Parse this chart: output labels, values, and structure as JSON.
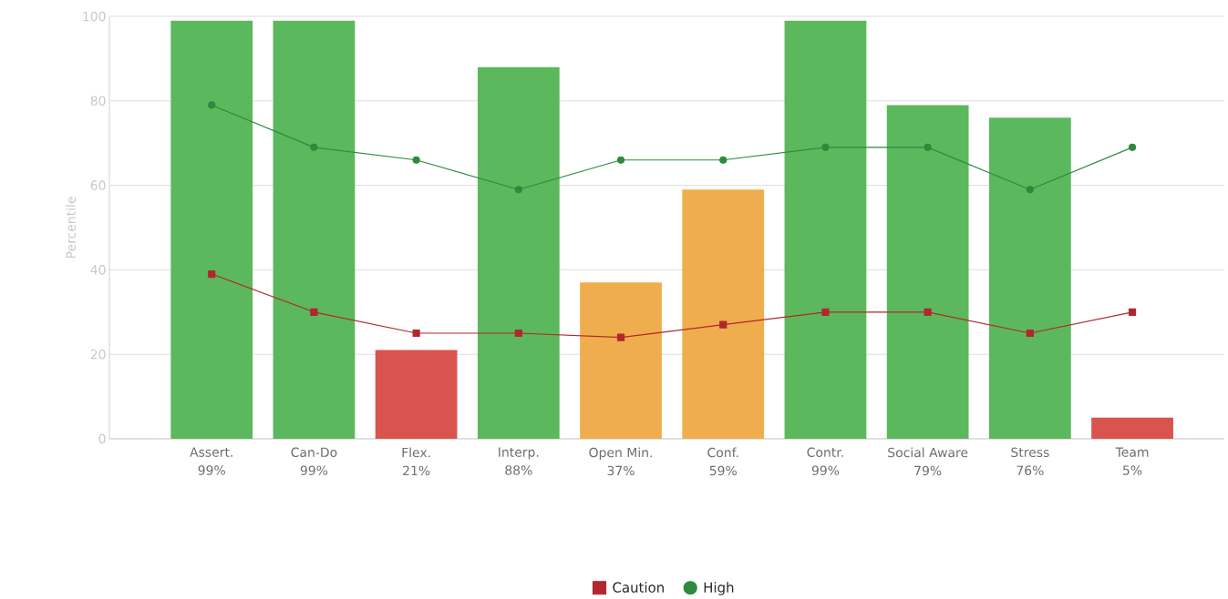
{
  "chart_data": {
    "type": "bar",
    "ylabel": "Percentile",
    "categories": [
      "Assert.",
      "Can-Do",
      "Flex.",
      "Interp.",
      "Open Min.",
      "Conf.",
      "Contr.",
      "Social Aware",
      "Stress",
      "Team"
    ],
    "series": [
      {
        "values": [
          99,
          99,
          21,
          88,
          37,
          59,
          99,
          79,
          76,
          5
        ],
        "value_labels": [
          "99%",
          "99%",
          "21%",
          "88%",
          "37%",
          "59%",
          "99%",
          "79%",
          "76%",
          "5%"
        ],
        "colors": [
          "#5cb85c",
          "#5cb85c",
          "#d9534f",
          "#5cb85c",
          "#f0ad4e",
          "#f0ad4e",
          "#5cb85c",
          "#5cb85c",
          "#5cb85c",
          "#d9534f"
        ]
      },
      {
        "type": "line",
        "name": "Caution",
        "color": "#b0282e",
        "marker": "square",
        "values": [
          39,
          30,
          25,
          25,
          24,
          27,
          30,
          30,
          25,
          30
        ]
      },
      {
        "type": "line",
        "name": "High",
        "color": "#2e8b3e",
        "marker": "circle",
        "values": [
          79,
          69,
          66,
          59,
          66,
          66,
          69,
          69,
          59,
          69
        ]
      }
    ],
    "ylim": [
      0,
      100
    ],
    "yticks": [
      0,
      20,
      40,
      60,
      80,
      100
    ],
    "grid": "y",
    "legend": "bottom"
  }
}
